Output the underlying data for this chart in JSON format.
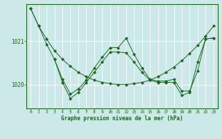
{
  "bg_color": "#cce8e8",
  "grid_color": "#b0d8d8",
  "line_color": "#1a6620",
  "title": "Graphe pression niveau de la mer (hPa)",
  "yticks": [
    1020,
    1021
  ],
  "ylim": [
    1019.45,
    1021.85
  ],
  "xlim": [
    -0.5,
    23.5
  ],
  "xticks": [
    0,
    1,
    2,
    3,
    4,
    5,
    6,
    7,
    8,
    9,
    10,
    11,
    12,
    13,
    14,
    15,
    16,
    17,
    18,
    19,
    20,
    21,
    22,
    23
  ],
  "series1_x": [
    0,
    1,
    2,
    3,
    4,
    5,
    6,
    7,
    8,
    9,
    10,
    11,
    12,
    13,
    14,
    15,
    16,
    17,
    18,
    19,
    20,
    21,
    22,
    23
  ],
  "series1_y": [
    1021.75,
    1021.35,
    1021.05,
    1020.78,
    1020.58,
    1020.42,
    1020.28,
    1020.18,
    1020.1,
    1020.05,
    1020.02,
    1020.0,
    1020.0,
    1020.02,
    1020.05,
    1020.1,
    1020.18,
    1020.28,
    1020.4,
    1020.55,
    1020.72,
    1020.9,
    1021.12,
    1021.35
  ],
  "series2_x": [
    0,
    1,
    2,
    3,
    4,
    5,
    6,
    7,
    8,
    9,
    10,
    11,
    12,
    13,
    14,
    15,
    16,
    17,
    18,
    19,
    20,
    21,
    22,
    23
  ],
  "series2_y": [
    1021.75,
    1021.35,
    1020.93,
    1020.58,
    1020.12,
    1019.78,
    1019.9,
    1020.1,
    1020.38,
    1020.63,
    1020.85,
    1020.85,
    1021.07,
    1020.7,
    1020.38,
    1020.12,
    1020.08,
    1020.08,
    1020.12,
    1019.85,
    1019.85,
    1020.32,
    1021.05,
    1021.07
  ],
  "series3_x": [
    3,
    4,
    5,
    6,
    7,
    8,
    9,
    10,
    11,
    12,
    13,
    14,
    15,
    16,
    17,
    18,
    19,
    20,
    21,
    22,
    23
  ],
  "series3_y": [
    1020.58,
    1020.05,
    1019.68,
    1019.82,
    1020.05,
    1020.28,
    1020.52,
    1020.75,
    1020.75,
    1020.73,
    1020.52,
    1020.28,
    1020.1,
    1020.05,
    1020.05,
    1020.05,
    1019.75,
    1019.82,
    1020.52,
    1021.05,
    1021.07
  ]
}
